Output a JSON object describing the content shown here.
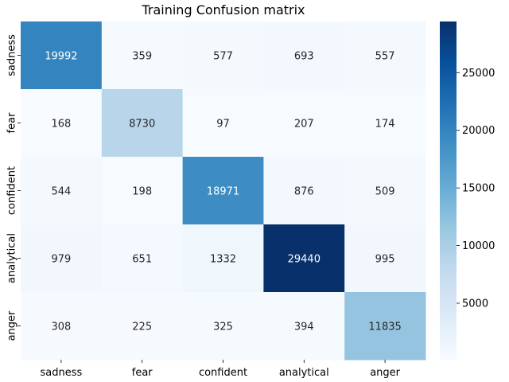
{
  "chart_data": {
    "type": "heatmap",
    "title": "Training Confusion matrix",
    "xlabel": "",
    "ylabel": "",
    "x_categories": [
      "sadness",
      "fear",
      "confident",
      "analytical",
      "anger"
    ],
    "y_categories": [
      "sadness",
      "fear",
      "confident",
      "analytical",
      "anger"
    ],
    "values": [
      [
        19992,
        359,
        577,
        693,
        557
      ],
      [
        168,
        8730,
        97,
        207,
        174
      ],
      [
        544,
        198,
        18971,
        876,
        509
      ],
      [
        979,
        651,
        1332,
        29440,
        995
      ],
      [
        308,
        225,
        325,
        394,
        11835
      ]
    ],
    "colormap": "Blues",
    "color_range": [
      97,
      29440
    ],
    "colorbar_ticks": [
      5000,
      10000,
      15000,
      20000,
      25000
    ],
    "grid": false,
    "legend": "colorbar-right"
  }
}
